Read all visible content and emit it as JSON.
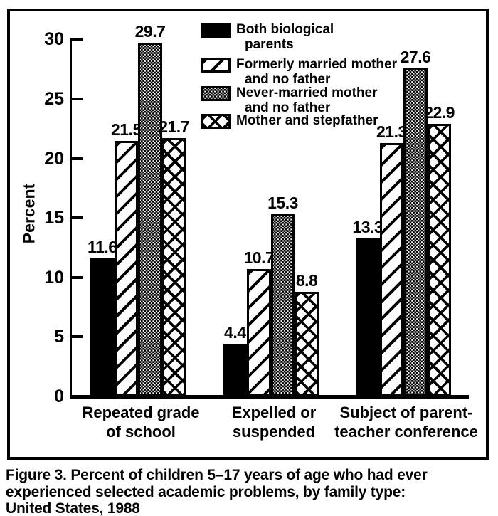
{
  "figure": {
    "caption_lines": [
      "Figure 3. Percent of children 5–17 years of age who had ever",
      "experienced selected academic problems, by family type:",
      "United States, 1988"
    ]
  },
  "chart_data": {
    "type": "bar",
    "title": "",
    "xlabel": "",
    "ylabel": "Percent",
    "ylim": [
      0,
      30
    ],
    "yticks": [
      0,
      5,
      10,
      15,
      20,
      25,
      30
    ],
    "grid": false,
    "legend_position": "top-center-inside",
    "categories": [
      [
        "Repeated grade",
        "of school"
      ],
      [
        "Expelled or",
        "suspended"
      ],
      [
        "Subject of parent-",
        "teacher conference"
      ]
    ],
    "series": [
      {
        "name": "Both biological parents",
        "pattern": "solid",
        "values": [
          11.6,
          4.4,
          13.3
        ]
      },
      {
        "name": "Formerly married mother and no father",
        "pattern": "diagonal-stripes",
        "values": [
          21.5,
          10.7,
          21.3
        ]
      },
      {
        "name": "Never-married mother and no father",
        "pattern": "stipple-dots",
        "values": [
          29.7,
          15.3,
          27.6
        ]
      },
      {
        "name": "Mother and stepfather",
        "pattern": "crosshatch",
        "values": [
          21.7,
          8.8,
          22.9
        ]
      }
    ],
    "colors": {
      "ink": "#000000",
      "paper": "#ffffff"
    }
  },
  "legend": {
    "items": [
      {
        "pattern": "solid",
        "lines": [
          "Both biological",
          "parents"
        ]
      },
      {
        "pattern": "diagonal-stripes",
        "lines": [
          "Formerly married mother",
          "and no father"
        ]
      },
      {
        "pattern": "stipple-dots",
        "lines": [
          "Never-married mother",
          "and no father"
        ]
      },
      {
        "pattern": "crosshatch",
        "lines": [
          "Mother and stepfather"
        ]
      }
    ]
  }
}
